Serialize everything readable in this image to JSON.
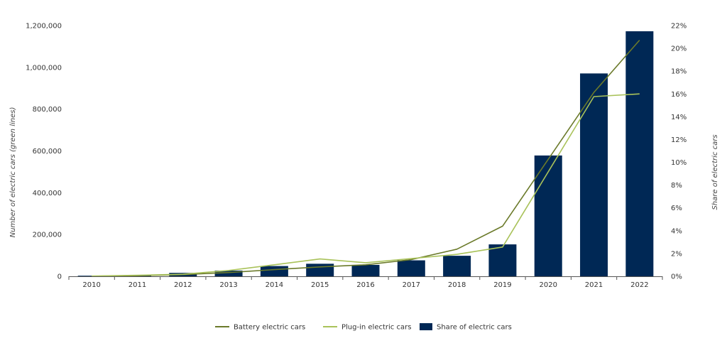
{
  "chart_data": {
    "type": "bar",
    "categories": [
      "2010",
      "2011",
      "2012",
      "2013",
      "2014",
      "2015",
      "2016",
      "2017",
      "2018",
      "2019",
      "2020",
      "2021",
      "2022"
    ],
    "ylabel": "Number of electric cars (green lines)",
    "y2label": "Share of electric cars",
    "ylim": [
      0,
      1200000
    ],
    "y2lim": [
      0,
      22
    ],
    "yticks": [
      "0",
      "200,000",
      "400,000",
      "600,000",
      "800,000",
      "1,000,000",
      "1,200,000"
    ],
    "y2ticks": [
      "0%",
      "2%",
      "4%",
      "6%",
      "8%",
      "10%",
      "12%",
      "14%",
      "16%",
      "18%",
      "20%",
      "22%"
    ],
    "grid": false,
    "legend_position": "bottom-center",
    "series": [
      {
        "name": "Battery electric cars",
        "type": "line",
        "axis": "left",
        "color": "#6b7a2a",
        "values": [
          500,
          3000,
          8000,
          18000,
          32000,
          45000,
          55000,
          80000,
          130000,
          240000,
          560000,
          880000,
          1130000
        ]
      },
      {
        "name": "Plug-in electric cars",
        "type": "line",
        "axis": "left",
        "color": "#a9c25a",
        "values": [
          1000,
          5000,
          10000,
          28000,
          55000,
          83000,
          65000,
          85000,
          105000,
          140000,
          500000,
          860000,
          873000
        ]
      },
      {
        "name": "Share of electric cars",
        "type": "bar",
        "axis": "right",
        "color": "#002855",
        "values": [
          0.05,
          0.1,
          0.3,
          0.5,
          0.9,
          1.1,
          1.0,
          1.4,
          1.8,
          2.8,
          10.6,
          17.8,
          21.5
        ]
      }
    ]
  }
}
